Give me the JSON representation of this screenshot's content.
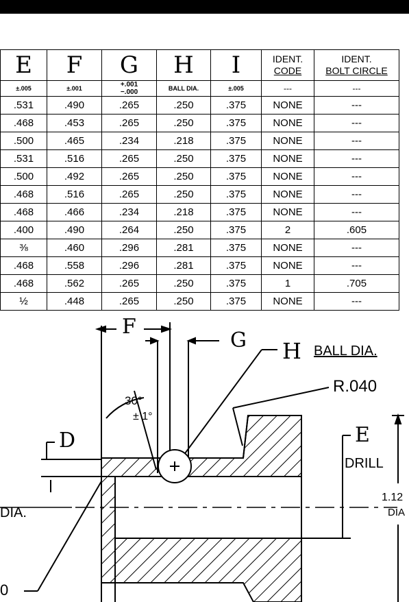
{
  "table": {
    "headers": [
      {
        "label": "E"
      },
      {
        "label": "F"
      },
      {
        "label": "G"
      },
      {
        "label": "H"
      },
      {
        "label": "I"
      },
      {
        "label": "IDENT.",
        "label2": "CODE"
      },
      {
        "label": "IDENT.",
        "label2": "BOLT CIRCLE"
      }
    ],
    "tolerances": [
      "±.005",
      "±.001",
      "+.001",
      "BALL DIA.",
      "±.005",
      "---",
      "---"
    ],
    "tolerance_g2": "−.000",
    "rows": [
      [
        ".531",
        ".490",
        ".265",
        ".250",
        ".375",
        "NONE",
        "---"
      ],
      [
        ".468",
        ".453",
        ".265",
        ".250",
        ".375",
        "NONE",
        "---"
      ],
      [
        ".500",
        ".465",
        ".234",
        ".218",
        ".375",
        "NONE",
        "---"
      ],
      [
        ".531",
        ".516",
        ".265",
        ".250",
        ".375",
        "NONE",
        "---"
      ],
      [
        ".500",
        ".492",
        ".265",
        ".250",
        ".375",
        "NONE",
        "---"
      ],
      [
        ".468",
        ".516",
        ".265",
        ".250",
        ".375",
        "NONE",
        "---"
      ],
      [
        ".468",
        ".466",
        ".234",
        ".218",
        ".375",
        "NONE",
        "---"
      ],
      [
        ".400",
        ".490",
        ".264",
        ".250",
        ".375",
        "2",
        ".605"
      ],
      [
        "⅜",
        ".460",
        ".296",
        ".281",
        ".375",
        "NONE",
        "---"
      ],
      [
        ".468",
        ".558",
        ".296",
        ".281",
        ".375",
        "NONE",
        "---"
      ],
      [
        ".468",
        ".562",
        ".265",
        ".250",
        ".375",
        "1",
        ".705"
      ],
      [
        "½",
        ".448",
        ".265",
        ".250",
        ".375",
        "NONE",
        "---"
      ]
    ]
  },
  "drawing": {
    "label_f": "F",
    "label_g": "G",
    "label_h": "H",
    "label_h_note": "BALL DIA.",
    "label_radius": "R.040",
    "label_angle": "30°",
    "label_angle_tol": "± 1°",
    "label_d": "D",
    "label_e": "E",
    "label_drill": "DRILL",
    "label_dia_left": "DIA.",
    "label_outer_dim": "1.12",
    "label_outer_dia": "DIA",
    "label_bottom_left": "0"
  }
}
